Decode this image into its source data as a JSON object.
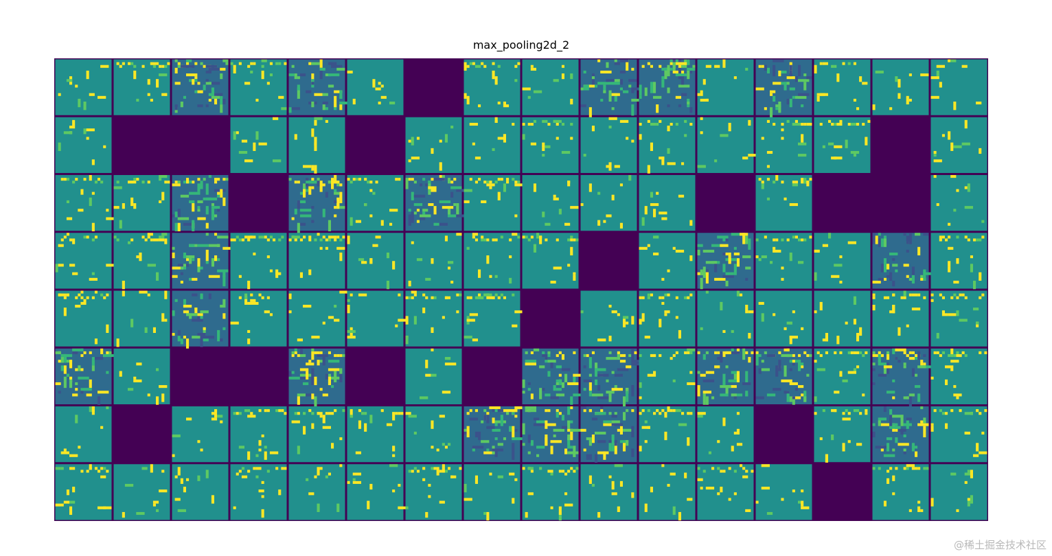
{
  "title": "max_pooling2d_2",
  "watermark": "@稀土掘金技术社区"
}
